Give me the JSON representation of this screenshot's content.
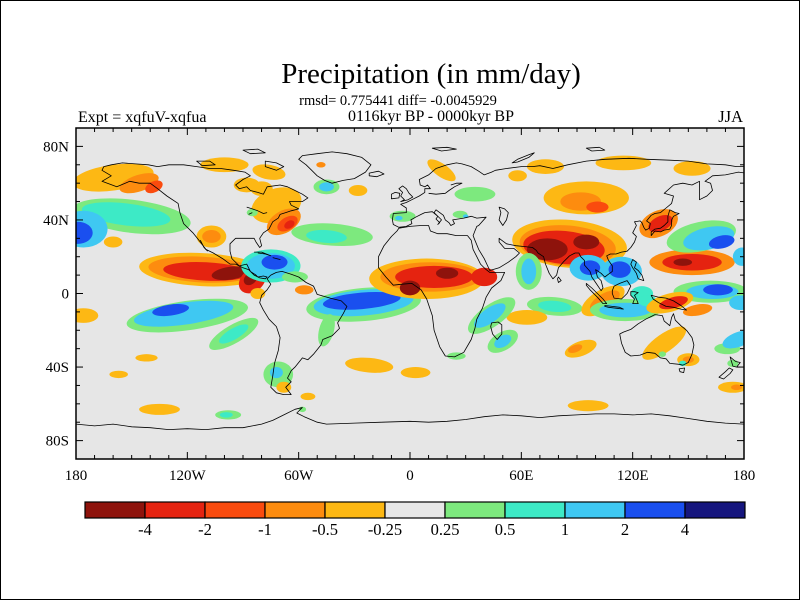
{
  "chart_data": {
    "type": "filled-contour-map",
    "title": "Precipitation (in mm/day)",
    "stats": "rmsd= 0.775441 diff= -0.0045929",
    "period": "0116kyr BP - 0000kyr BP",
    "experiment_label": "Expt = xqfuV-xqfua",
    "season_label": "JJA",
    "projection": "equirectangular",
    "lon_range": [
      -180,
      180
    ],
    "lat_range": [
      -90,
      90
    ],
    "background_color": "#E6E6E6",
    "frame_color": "#000000",
    "x_axis": {
      "minor_tick_deg": 10,
      "major_ticks": [
        {
          "lon": -180,
          "label": "180"
        },
        {
          "lon": -120,
          "label": "120W"
        },
        {
          "lon": -60,
          "label": "60W"
        },
        {
          "lon": 0,
          "label": "0"
        },
        {
          "lon": 60,
          "label": "60E"
        },
        {
          "lon": 120,
          "label": "120E"
        },
        {
          "lon": 180,
          "label": "180"
        }
      ]
    },
    "y_axis": {
      "minor_tick_deg": 10,
      "major_ticks": [
        {
          "lat": 80,
          "label": "80N"
        },
        {
          "lat": 40,
          "label": "40N"
        },
        {
          "lat": 0,
          "label": "0"
        },
        {
          "lat": -40,
          "label": "40S"
        },
        {
          "lat": -80,
          "label": "80S"
        }
      ]
    },
    "colorbar": {
      "unit": "mm/day",
      "boundary_labels": [
        "-4",
        "-2",
        "-1",
        "-0.5",
        "-0.25",
        "0.25",
        "0.5",
        "1",
        "2",
        "4"
      ],
      "colors": [
        "#8E130C",
        "#E52310",
        "#FA4B0E",
        "#FD8C0F",
        "#FDB814",
        "#E6E6E6",
        "#7DE97E",
        "#3DEAC6",
        "#3FC8F2",
        "#1A4FEF",
        "#16167E"
      ],
      "level_meaning": "11 fill bands from below -4 to above +4 mm/day; band 5 (gray) is -0.25..0.25 (no change)"
    },
    "anomaly_region_format": "[lon_center, lat_center, rx_deg, ry_deg, rotation_deg, color_level_index]",
    "anomaly_regions": [
      [
        -150,
        42,
        32,
        9,
        7,
        6
      ],
      [
        -153,
        43,
        24,
        6,
        7,
        7
      ],
      [
        -176,
        35,
        13,
        10,
        0,
        8
      ],
      [
        -179,
        33,
        8,
        6,
        0,
        9
      ],
      [
        -160,
        63,
        22,
        7,
        -8,
        4
      ],
      [
        -146,
        60,
        11,
        4.5,
        -18,
        3
      ],
      [
        -138,
        58,
        5,
        3,
        -25,
        2
      ],
      [
        -100,
        70,
        13,
        4,
        0,
        4
      ],
      [
        -76,
        66,
        9,
        4,
        10,
        4
      ],
      [
        -88,
        59,
        7,
        4,
        0,
        4
      ],
      [
        -80,
        57,
        6,
        4,
        0,
        4
      ],
      [
        -72,
        48,
        14,
        9,
        -20,
        4
      ],
      [
        -68,
        39,
        10,
        6,
        -30,
        3
      ],
      [
        -66,
        38,
        6,
        3.5,
        -30,
        2
      ],
      [
        -65,
        37.5,
        3,
        2,
        -30,
        1
      ],
      [
        -45,
        58,
        7,
        4,
        0,
        6
      ],
      [
        -45,
        58,
        4,
        2.5,
        0,
        8
      ],
      [
        -28,
        56,
        5,
        3,
        0,
        4
      ],
      [
        -48,
        70,
        2.5,
        1.5,
        0,
        3
      ],
      [
        -42,
        32,
        22,
        6,
        4,
        6
      ],
      [
        -45,
        31,
        11,
        3.5,
        4,
        7
      ],
      [
        -4,
        42,
        7,
        3,
        0,
        6
      ],
      [
        -6,
        41,
        2,
        1.2,
        0,
        8
      ],
      [
        35,
        54,
        11,
        4,
        0,
        6
      ],
      [
        27,
        43,
        4,
        2,
        0,
        6
      ],
      [
        30,
        42,
        1.5,
        1,
        0,
        8
      ],
      [
        17,
        67,
        9,
        3.5,
        35,
        4
      ],
      [
        58,
        64,
        5,
        3,
        0,
        4
      ],
      [
        73,
        69,
        10,
        4,
        0,
        4
      ],
      [
        115,
        71,
        15,
        4,
        0,
        4
      ],
      [
        152,
        68,
        10,
        4,
        0,
        4
      ],
      [
        95,
        52,
        23,
        9,
        0,
        4
      ],
      [
        92,
        50,
        11,
        5,
        0,
        3
      ],
      [
        101,
        47,
        6,
        3,
        0,
        2
      ],
      [
        86,
        27,
        31,
        13,
        5,
        4
      ],
      [
        85,
        26,
        26,
        11,
        5,
        3
      ],
      [
        83,
        25,
        22,
        9,
        5,
        1
      ],
      [
        74,
        24,
        11,
        6,
        0,
        0
      ],
      [
        95,
        28,
        7,
        4,
        0,
        0
      ],
      [
        134,
        38,
        11,
        7,
        -25,
        3
      ],
      [
        135,
        38,
        7,
        4,
        -25,
        1
      ],
      [
        152,
        17,
        23,
        7,
        0,
        3
      ],
      [
        152,
        17,
        16,
        4.5,
        0,
        1
      ],
      [
        147,
        17,
        5,
        2,
        0,
        0
      ],
      [
        157,
        31,
        19,
        8,
        -12,
        6
      ],
      [
        161,
        30,
        14,
        6,
        -12,
        8
      ],
      [
        168,
        28,
        7,
        3.5,
        -12,
        9
      ],
      [
        179,
        20,
        5,
        5,
        0,
        8
      ],
      [
        162,
        1,
        20,
        6,
        0,
        6
      ],
      [
        163,
        1,
        14,
        4,
        0,
        8
      ],
      [
        166,
        2,
        8,
        3,
        0,
        9
      ],
      [
        178,
        -5,
        6,
        4,
        0,
        8
      ],
      [
        96,
        14,
        10,
        7,
        0,
        8
      ],
      [
        97,
        14,
        5.5,
        4,
        0,
        9
      ],
      [
        114,
        12,
        11,
        8,
        0,
        8
      ],
      [
        113,
        13,
        6,
        4.5,
        0,
        9
      ],
      [
        64,
        12,
        7,
        10,
        0,
        6
      ],
      [
        64,
        12,
        4,
        7,
        0,
        8
      ],
      [
        78,
        -7,
        15,
        5,
        5,
        6
      ],
      [
        78,
        -7,
        9,
        3,
        5,
        7
      ],
      [
        63,
        -13,
        11,
        4,
        0,
        4
      ],
      [
        104,
        -4,
        13,
        6,
        -30,
        4
      ],
      [
        105,
        -4,
        9,
        4,
        -30,
        3
      ],
      [
        116,
        -9,
        19,
        6,
        0,
        6
      ],
      [
        116,
        -9,
        14,
        4,
        0,
        8
      ],
      [
        125,
        0,
        6,
        4,
        0,
        7
      ],
      [
        128,
        -4,
        5,
        3,
        0,
        7
      ],
      [
        140,
        -5,
        13,
        5,
        -15,
        4
      ],
      [
        142,
        -5,
        8,
        3,
        -15,
        1
      ],
      [
        155,
        -9,
        8,
        3,
        -10,
        3
      ],
      [
        -112,
        13,
        34,
        9,
        3,
        4
      ],
      [
        -112,
        13,
        29,
        7,
        3,
        3
      ],
      [
        -110,
        12,
        23,
        5,
        3,
        1
      ],
      [
        -97,
        11,
        10,
        3.5,
        -8,
        0
      ],
      [
        -85,
        7,
        8,
        6,
        -40,
        1
      ],
      [
        -86,
        8,
        4,
        3,
        -40,
        0
      ],
      [
        -82,
        0,
        4,
        3,
        0,
        4
      ],
      [
        -75,
        15,
        16,
        9,
        0,
        7
      ],
      [
        -75,
        15,
        13,
        7,
        0,
        8
      ],
      [
        -73,
        17,
        7,
        4,
        0,
        9
      ],
      [
        -62,
        9,
        7,
        3,
        0,
        6
      ],
      [
        -57,
        2,
        5,
        2.5,
        0,
        3
      ],
      [
        -107,
        31,
        8,
        6,
        0,
        4
      ],
      [
        -107,
        31,
        5,
        3.5,
        0,
        3
      ],
      [
        -160,
        28,
        5,
        3,
        0,
        4
      ],
      [
        -85,
        44,
        3,
        2,
        0,
        6
      ],
      [
        -120,
        -12,
        33,
        8,
        -8,
        6
      ],
      [
        -122,
        -11,
        27,
        6,
        -8,
        8
      ],
      [
        -129,
        -9,
        10,
        3,
        -8,
        9
      ],
      [
        -95,
        -22,
        15,
        5,
        -30,
        6
      ],
      [
        -95,
        -22,
        9,
        3,
        -30,
        7
      ],
      [
        -176,
        -12,
        8,
        4,
        0,
        4
      ],
      [
        -142,
        -35,
        6,
        2,
        0,
        4
      ],
      [
        -25,
        -6,
        31,
        9,
        -5,
        6
      ],
      [
        -25,
        -5,
        27,
        7,
        -5,
        8
      ],
      [
        -26,
        -4,
        21,
        4.5,
        -5,
        9
      ],
      [
        9,
        8,
        31,
        11,
        0,
        4
      ],
      [
        11,
        9,
        27,
        8,
        0,
        3
      ],
      [
        13,
        9,
        21,
        6,
        0,
        1
      ],
      [
        0,
        3,
        5.5,
        4,
        0,
        0
      ],
      [
        20,
        11,
        6,
        3,
        0,
        0
      ],
      [
        40,
        9,
        7,
        5,
        0,
        1
      ],
      [
        44,
        -12,
        15,
        6,
        -35,
        6
      ],
      [
        43,
        -12,
        10,
        4,
        -35,
        8
      ],
      [
        50,
        -26,
        9,
        5,
        -30,
        6
      ],
      [
        50,
        -26,
        5,
        3,
        -30,
        8
      ],
      [
        25,
        -34,
        5,
        2,
        0,
        6
      ],
      [
        -22,
        -39,
        13,
        4,
        5,
        4
      ],
      [
        3,
        -43,
        8,
        3,
        0,
        4
      ],
      [
        -71,
        -44,
        8,
        7,
        0,
        6
      ],
      [
        -72,
        -43,
        3.5,
        3,
        0,
        8
      ],
      [
        -68,
        -51,
        4,
        3,
        0,
        4
      ],
      [
        -45,
        -20,
        4,
        9,
        15,
        6
      ],
      [
        137,
        -27,
        14,
        5,
        -35,
        4
      ],
      [
        150,
        -36,
        6,
        3.5,
        0,
        4
      ],
      [
        150,
        -36,
        3,
        1.8,
        0,
        3
      ],
      [
        136,
        -33,
        2,
        1.5,
        0,
        6
      ],
      [
        147,
        -38,
        2,
        1.5,
        0,
        7
      ],
      [
        92,
        -30,
        9,
        4,
        -20,
        4
      ],
      [
        89,
        -30,
        4,
        2,
        -20,
        3
      ],
      [
        171,
        -30,
        7,
        3,
        0,
        6
      ],
      [
        177,
        -25,
        9,
        4,
        -20,
        8
      ],
      [
        174,
        -38,
        3,
        2,
        0,
        6
      ],
      [
        -135,
        -63,
        11,
        3,
        0,
        4
      ],
      [
        -157,
        -44,
        5,
        2,
        0,
        4
      ],
      [
        -98,
        -66,
        7,
        2.5,
        0,
        6
      ],
      [
        -99,
        -66,
        3.5,
        1.5,
        0,
        7
      ],
      [
        -55,
        -56,
        4,
        2,
        0,
        4
      ],
      [
        -58,
        -63,
        2,
        1.5,
        0,
        6
      ],
      [
        96,
        -61,
        11,
        3,
        0,
        4
      ],
      [
        174,
        -51,
        8,
        3,
        0,
        4
      ],
      [
        176,
        -51,
        3,
        1.5,
        0,
        3
      ]
    ]
  }
}
